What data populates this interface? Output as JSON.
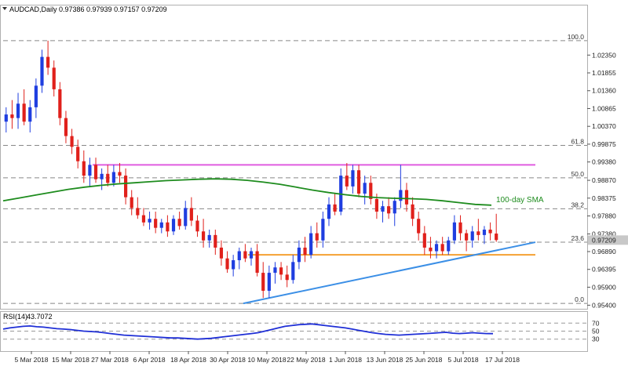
{
  "header": {
    "symbol_text": "AUDCAD,Daily",
    "ohlc_text": "0.97386 0.97939 0.97157 0.97209"
  },
  "rsi_header": {
    "label": "RSI(14)",
    "value": "43.7072"
  },
  "sma_label": "100-day SMA",
  "colors": {
    "bull": "#1f3ee0",
    "bear": "#e0201b",
    "sma": "#1e8c1e",
    "resistance": "#e05ce0",
    "support": "#f5a032",
    "trendline": "#3b8fe6",
    "rsi": "#1f2fd6",
    "grid_dash": "#888888",
    "price_tag_bg": "#c8c8c8"
  },
  "chart_data": [
    {
      "type": "candlestick",
      "title": "AUDCAD,Daily",
      "ylim": [
        0.953,
        1.0375
      ],
      "y_ticks": [
        "1.02350",
        "1.01855",
        "1.01360",
        "1.00865",
        "1.00370",
        "0.99875",
        "0.99380",
        "0.98870",
        "0.98375",
        "0.97880",
        "0.97380",
        "0.96890",
        "0.96395",
        "0.95900",
        "0.95400"
      ],
      "x_tick_labels": [
        "5 Mar 2018",
        "15 Mar 2018",
        "27 Mar 2018",
        "6 Apr 2018",
        "18 Apr 2018",
        "30 Apr 2018",
        "10 May 2018",
        "22 May 2018",
        "1 Jun 2018",
        "13 Jun 2018",
        "25 Jun 2018",
        "5 Jul 2018",
        "17 Jul 2018"
      ],
      "current_price": "0.97209",
      "fibonacci_levels": [
        {
          "label": "100.0",
          "value": 1.0275
        },
        {
          "label": "61.8",
          "value": 0.9984
        },
        {
          "label": "50.0",
          "value": 0.9894
        },
        {
          "label": "38.2",
          "value": 0.9808
        },
        {
          "label": "23.6",
          "value": 0.9715
        },
        {
          "label": "0.0",
          "value": 0.9545
        }
      ],
      "candles": [
        {
          "o": 1.005,
          "h": 1.009,
          "l": 1.002,
          "c": 1.007
        },
        {
          "o": 1.007,
          "h": 1.011,
          "l": 1.003,
          "c": 1.006
        },
        {
          "o": 1.006,
          "h": 1.013,
          "l": 1.003,
          "c": 1.01
        },
        {
          "o": 1.01,
          "h": 1.014,
          "l": 1.004,
          "c": 1.005
        },
        {
          "o": 1.005,
          "h": 1.011,
          "l": 1.002,
          "c": 1.009
        },
        {
          "o": 1.009,
          "h": 1.017,
          "l": 1.006,
          "c": 1.015
        },
        {
          "o": 1.015,
          "h": 1.025,
          "l": 1.013,
          "c": 1.023
        },
        {
          "o": 1.023,
          "h": 1.0275,
          "l": 1.018,
          "c": 1.02
        },
        {
          "o": 1.02,
          "h": 1.022,
          "l": 1.012,
          "c": 1.014
        },
        {
          "o": 1.014,
          "h": 1.016,
          "l": 1.004,
          "c": 1.006
        },
        {
          "o": 1.006,
          "h": 1.008,
          "l": 0.999,
          "c": 1.001
        },
        {
          "o": 1.001,
          "h": 1.003,
          "l": 0.996,
          "c": 0.998
        },
        {
          "o": 0.998,
          "h": 1.0,
          "l": 0.992,
          "c": 0.994
        },
        {
          "o": 0.994,
          "h": 0.997,
          "l": 0.988,
          "c": 0.99
        },
        {
          "o": 0.99,
          "h": 0.995,
          "l": 0.987,
          "c": 0.993
        },
        {
          "o": 0.993,
          "h": 0.995,
          "l": 0.988,
          "c": 0.989
        },
        {
          "o": 0.989,
          "h": 0.992,
          "l": 0.986,
          "c": 0.9905
        },
        {
          "o": 0.9905,
          "h": 0.993,
          "l": 0.987,
          "c": 0.988
        },
        {
          "o": 0.988,
          "h": 0.993,
          "l": 0.987,
          "c": 0.991
        },
        {
          "o": 0.991,
          "h": 0.9935,
          "l": 0.988,
          "c": 0.99
        },
        {
          "o": 0.99,
          "h": 0.992,
          "l": 0.982,
          "c": 0.984
        },
        {
          "o": 0.984,
          "h": 0.986,
          "l": 0.979,
          "c": 0.981
        },
        {
          "o": 0.981,
          "h": 0.984,
          "l": 0.978,
          "c": 0.979
        },
        {
          "o": 0.979,
          "h": 0.981,
          "l": 0.976,
          "c": 0.977
        },
        {
          "o": 0.977,
          "h": 0.98,
          "l": 0.975,
          "c": 0.978
        },
        {
          "o": 0.978,
          "h": 0.98,
          "l": 0.974,
          "c": 0.9755
        },
        {
          "o": 0.9755,
          "h": 0.978,
          "l": 0.974,
          "c": 0.977
        },
        {
          "o": 0.977,
          "h": 0.979,
          "l": 0.973,
          "c": 0.9745
        },
        {
          "o": 0.9745,
          "h": 0.979,
          "l": 0.9735,
          "c": 0.978
        },
        {
          "o": 0.978,
          "h": 0.98,
          "l": 0.975,
          "c": 0.976
        },
        {
          "o": 0.976,
          "h": 0.983,
          "l": 0.975,
          "c": 0.981
        },
        {
          "o": 0.981,
          "h": 0.984,
          "l": 0.976,
          "c": 0.9775
        },
        {
          "o": 0.9775,
          "h": 0.979,
          "l": 0.973,
          "c": 0.9745
        },
        {
          "o": 0.9745,
          "h": 0.978,
          "l": 0.97,
          "c": 0.972
        },
        {
          "o": 0.972,
          "h": 0.975,
          "l": 0.97,
          "c": 0.9735
        },
        {
          "o": 0.9735,
          "h": 0.975,
          "l": 0.968,
          "c": 0.97
        },
        {
          "o": 0.97,
          "h": 0.972,
          "l": 0.965,
          "c": 0.967
        },
        {
          "o": 0.967,
          "h": 0.969,
          "l": 0.963,
          "c": 0.964
        },
        {
          "o": 0.964,
          "h": 0.968,
          "l": 0.962,
          "c": 0.9665
        },
        {
          "o": 0.9665,
          "h": 0.97,
          "l": 0.964,
          "c": 0.969
        },
        {
          "o": 0.969,
          "h": 0.971,
          "l": 0.966,
          "c": 0.967
        },
        {
          "o": 0.967,
          "h": 0.97,
          "l": 0.965,
          "c": 0.969
        },
        {
          "o": 0.969,
          "h": 0.971,
          "l": 0.962,
          "c": 0.963
        },
        {
          "o": 0.963,
          "h": 0.966,
          "l": 0.956,
          "c": 0.958
        },
        {
          "o": 0.958,
          "h": 0.965,
          "l": 0.956,
          "c": 0.963
        },
        {
          "o": 0.963,
          "h": 0.966,
          "l": 0.96,
          "c": 0.9645
        },
        {
          "o": 0.9645,
          "h": 0.966,
          "l": 0.961,
          "c": 0.9625
        },
        {
          "o": 0.9625,
          "h": 0.965,
          "l": 0.959,
          "c": 0.961
        },
        {
          "o": 0.961,
          "h": 0.968,
          "l": 0.96,
          "c": 0.966
        },
        {
          "o": 0.966,
          "h": 0.972,
          "l": 0.964,
          "c": 0.97
        },
        {
          "o": 0.97,
          "h": 0.973,
          "l": 0.966,
          "c": 0.968
        },
        {
          "o": 0.968,
          "h": 0.976,
          "l": 0.967,
          "c": 0.974
        },
        {
          "o": 0.974,
          "h": 0.977,
          "l": 0.97,
          "c": 0.972
        },
        {
          "o": 0.972,
          "h": 0.98,
          "l": 0.97,
          "c": 0.978
        },
        {
          "o": 0.978,
          "h": 0.984,
          "l": 0.976,
          "c": 0.982
        },
        {
          "o": 0.982,
          "h": 0.985,
          "l": 0.979,
          "c": 0.98
        },
        {
          "o": 0.98,
          "h": 0.992,
          "l": 0.979,
          "c": 0.99
        },
        {
          "o": 0.99,
          "h": 0.9935,
          "l": 0.986,
          "c": 0.987
        },
        {
          "o": 0.987,
          "h": 0.993,
          "l": 0.985,
          "c": 0.9915
        },
        {
          "o": 0.9915,
          "h": 0.993,
          "l": 0.984,
          "c": 0.985
        },
        {
          "o": 0.985,
          "h": 0.99,
          "l": 0.982,
          "c": 0.988
        },
        {
          "o": 0.988,
          "h": 0.99,
          "l": 0.982,
          "c": 0.9835
        },
        {
          "o": 0.9835,
          "h": 0.985,
          "l": 0.978,
          "c": 0.98
        },
        {
          "o": 0.98,
          "h": 0.983,
          "l": 0.977,
          "c": 0.9815
        },
        {
          "o": 0.9815,
          "h": 0.984,
          "l": 0.978,
          "c": 0.9795
        },
        {
          "o": 0.9795,
          "h": 0.984,
          "l": 0.976,
          "c": 0.983
        },
        {
          "o": 0.983,
          "h": 0.993,
          "l": 0.981,
          "c": 0.986
        },
        {
          "o": 0.986,
          "h": 0.988,
          "l": 0.98,
          "c": 0.982
        },
        {
          "o": 0.982,
          "h": 0.984,
          "l": 0.976,
          "c": 0.978
        },
        {
          "o": 0.978,
          "h": 0.98,
          "l": 0.972,
          "c": 0.974
        },
        {
          "o": 0.974,
          "h": 0.976,
          "l": 0.968,
          "c": 0.97
        },
        {
          "o": 0.97,
          "h": 0.973,
          "l": 0.967,
          "c": 0.969
        },
        {
          "o": 0.969,
          "h": 0.972,
          "l": 0.967,
          "c": 0.971
        },
        {
          "o": 0.971,
          "h": 0.973,
          "l": 0.968,
          "c": 0.969
        },
        {
          "o": 0.969,
          "h": 0.973,
          "l": 0.968,
          "c": 0.972
        },
        {
          "o": 0.972,
          "h": 0.979,
          "l": 0.971,
          "c": 0.977
        },
        {
          "o": 0.977,
          "h": 0.979,
          "l": 0.972,
          "c": 0.974
        },
        {
          "o": 0.974,
          "h": 0.975,
          "l": 0.969,
          "c": 0.972
        },
        {
          "o": 0.972,
          "h": 0.976,
          "l": 0.97,
          "c": 0.9745
        },
        {
          "o": 0.9745,
          "h": 0.978,
          "l": 0.972,
          "c": 0.9735
        },
        {
          "o": 0.9735,
          "h": 0.976,
          "l": 0.971,
          "c": 0.975
        },
        {
          "o": 0.975,
          "h": 0.977,
          "l": 0.972,
          "c": 0.974
        },
        {
          "o": 0.9739,
          "h": 0.9794,
          "l": 0.9716,
          "c": 0.9721
        }
      ],
      "sma_100": [
        0.983,
        0.9838,
        0.9846,
        0.9854,
        0.9862,
        0.9868,
        0.9873,
        0.9877,
        0.988,
        0.9883,
        0.9886,
        0.9888,
        0.989,
        0.9891,
        0.989,
        0.9887,
        0.9882,
        0.9876,
        0.9868,
        0.986,
        0.9853,
        0.9847,
        0.9842,
        0.9839,
        0.9837,
        0.9836,
        0.9834,
        0.983,
        0.9825,
        0.982,
        0.9818
      ],
      "support_level": 0.968,
      "resistance_level": 0.993,
      "trendline": {
        "from": 0.9545,
        "to": 0.9715
      }
    },
    {
      "type": "line",
      "title": "RSI(14) 43.7072",
      "ylim": [
        0,
        100
      ],
      "y_ticks": [
        "70",
        "50",
        "30"
      ],
      "values": [
        55,
        58,
        60,
        62,
        63,
        61,
        60,
        58,
        56,
        55,
        54,
        52,
        50,
        49,
        48,
        46,
        44,
        42,
        40,
        39,
        38,
        37,
        36,
        35,
        34,
        33,
        33,
        32,
        31,
        30,
        31,
        32,
        34,
        36,
        38,
        40,
        42,
        44,
        46,
        50,
        54,
        58,
        62,
        64,
        66,
        67,
        68,
        66,
        64,
        62,
        60,
        58,
        55,
        52,
        49,
        46,
        44,
        42,
        41,
        40,
        41,
        42,
        43,
        44,
        45,
        46,
        47,
        45,
        44,
        45,
        46,
        45,
        44,
        43.7
      ],
      "last_value": "43.7072"
    }
  ]
}
